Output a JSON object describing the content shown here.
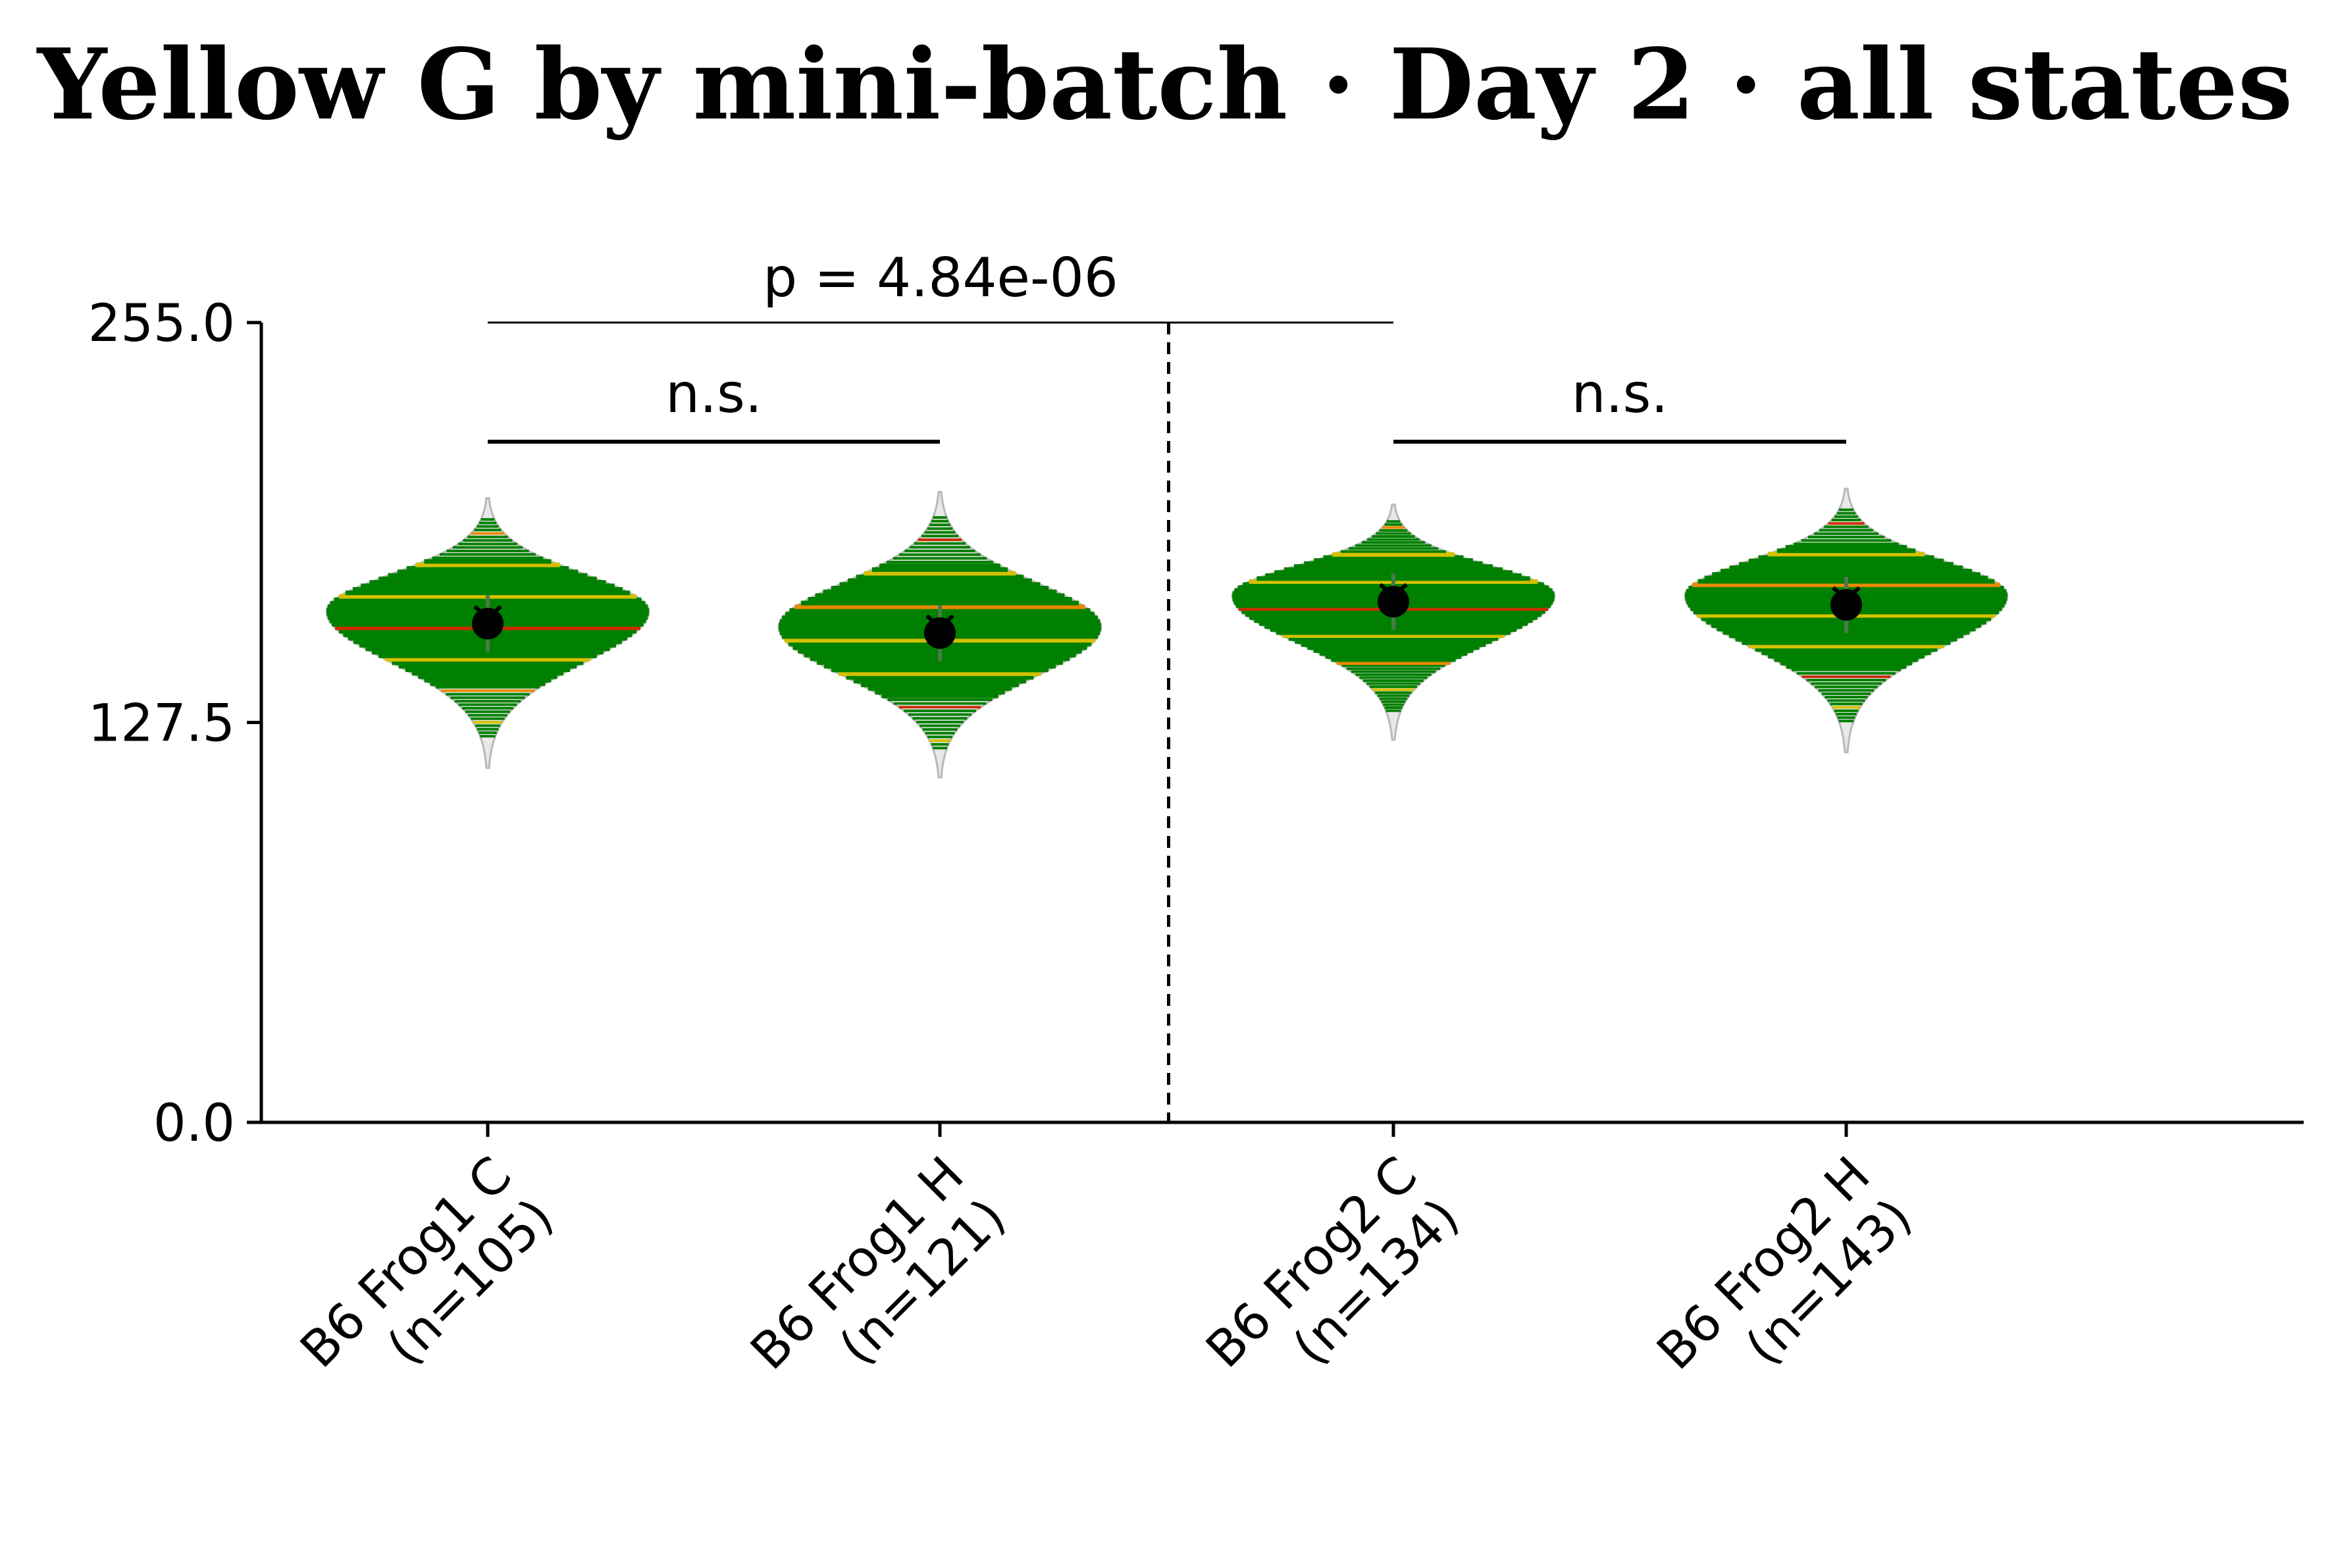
{
  "chart_data": {
    "type": "violin",
    "title": "Yellow G by mini-batch · Day 2 · all states",
    "xlabel": "",
    "ylabel": "",
    "ylim": [
      0,
      255
    ],
    "yticks": [
      "0.0",
      "127.5",
      "255.0"
    ],
    "grid": false,
    "categories": [
      {
        "line1": "B6 Frog1 C",
        "line2": "(n=105)"
      },
      {
        "line1": "B6 Frog1 H",
        "line2": "(n=121)"
      },
      {
        "line1": "B6 Frog2 C",
        "line2": "(n=134)"
      },
      {
        "line1": "B6 Frog2 H",
        "line2": "(n=143)"
      }
    ],
    "series": [
      {
        "min": 113,
        "max": 199,
        "mode": 163,
        "mean": 159,
        "median": 158
      },
      {
        "min": 110,
        "max": 201,
        "mode": 158,
        "mean": 156,
        "median": 156
      },
      {
        "min": 122,
        "max": 197,
        "mode": 168,
        "mean": 166,
        "median": 166
      },
      {
        "min": 118,
        "max": 202,
        "mode": 168,
        "mean": 165,
        "median": 165
      }
    ],
    "stripe_colors": {
      "main": "#008000",
      "alt1": "#d4c000",
      "alt2": "#c83000",
      "alt3": "#e88a00"
    },
    "brackets": [
      {
        "from": 0,
        "to": 1,
        "y": 217,
        "label": "n.s."
      },
      {
        "from": 2,
        "to": 3,
        "y": 217,
        "label": "n.s."
      },
      {
        "from": 0,
        "to": 2,
        "y": 255,
        "label": "p = 4.84e-06"
      }
    ],
    "divider_between": [
      1,
      2
    ]
  }
}
